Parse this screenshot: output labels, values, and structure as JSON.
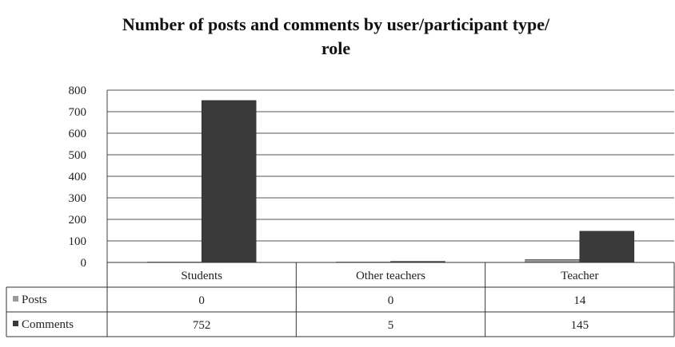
{
  "chart_data": {
    "type": "bar",
    "title": "Number of posts and comments by user/participant type/ role",
    "title_lines": [
      "Number of posts and comments by user/participant type/",
      "role"
    ],
    "xlabel": "",
    "ylabel": "",
    "ylim": [
      0,
      800
    ],
    "yticks": [
      0,
      100,
      200,
      300,
      400,
      500,
      600,
      700,
      800
    ],
    "grid": true,
    "legend": "data-table-left",
    "categories": [
      "Students",
      "Other teachers",
      "Teacher"
    ],
    "series": [
      {
        "name": "Posts",
        "values": [
          0,
          0,
          14
        ],
        "color": "#9a9a9a"
      },
      {
        "name": "Comments",
        "values": [
          752,
          5,
          145
        ],
        "color": "#3a3a3a"
      }
    ]
  }
}
